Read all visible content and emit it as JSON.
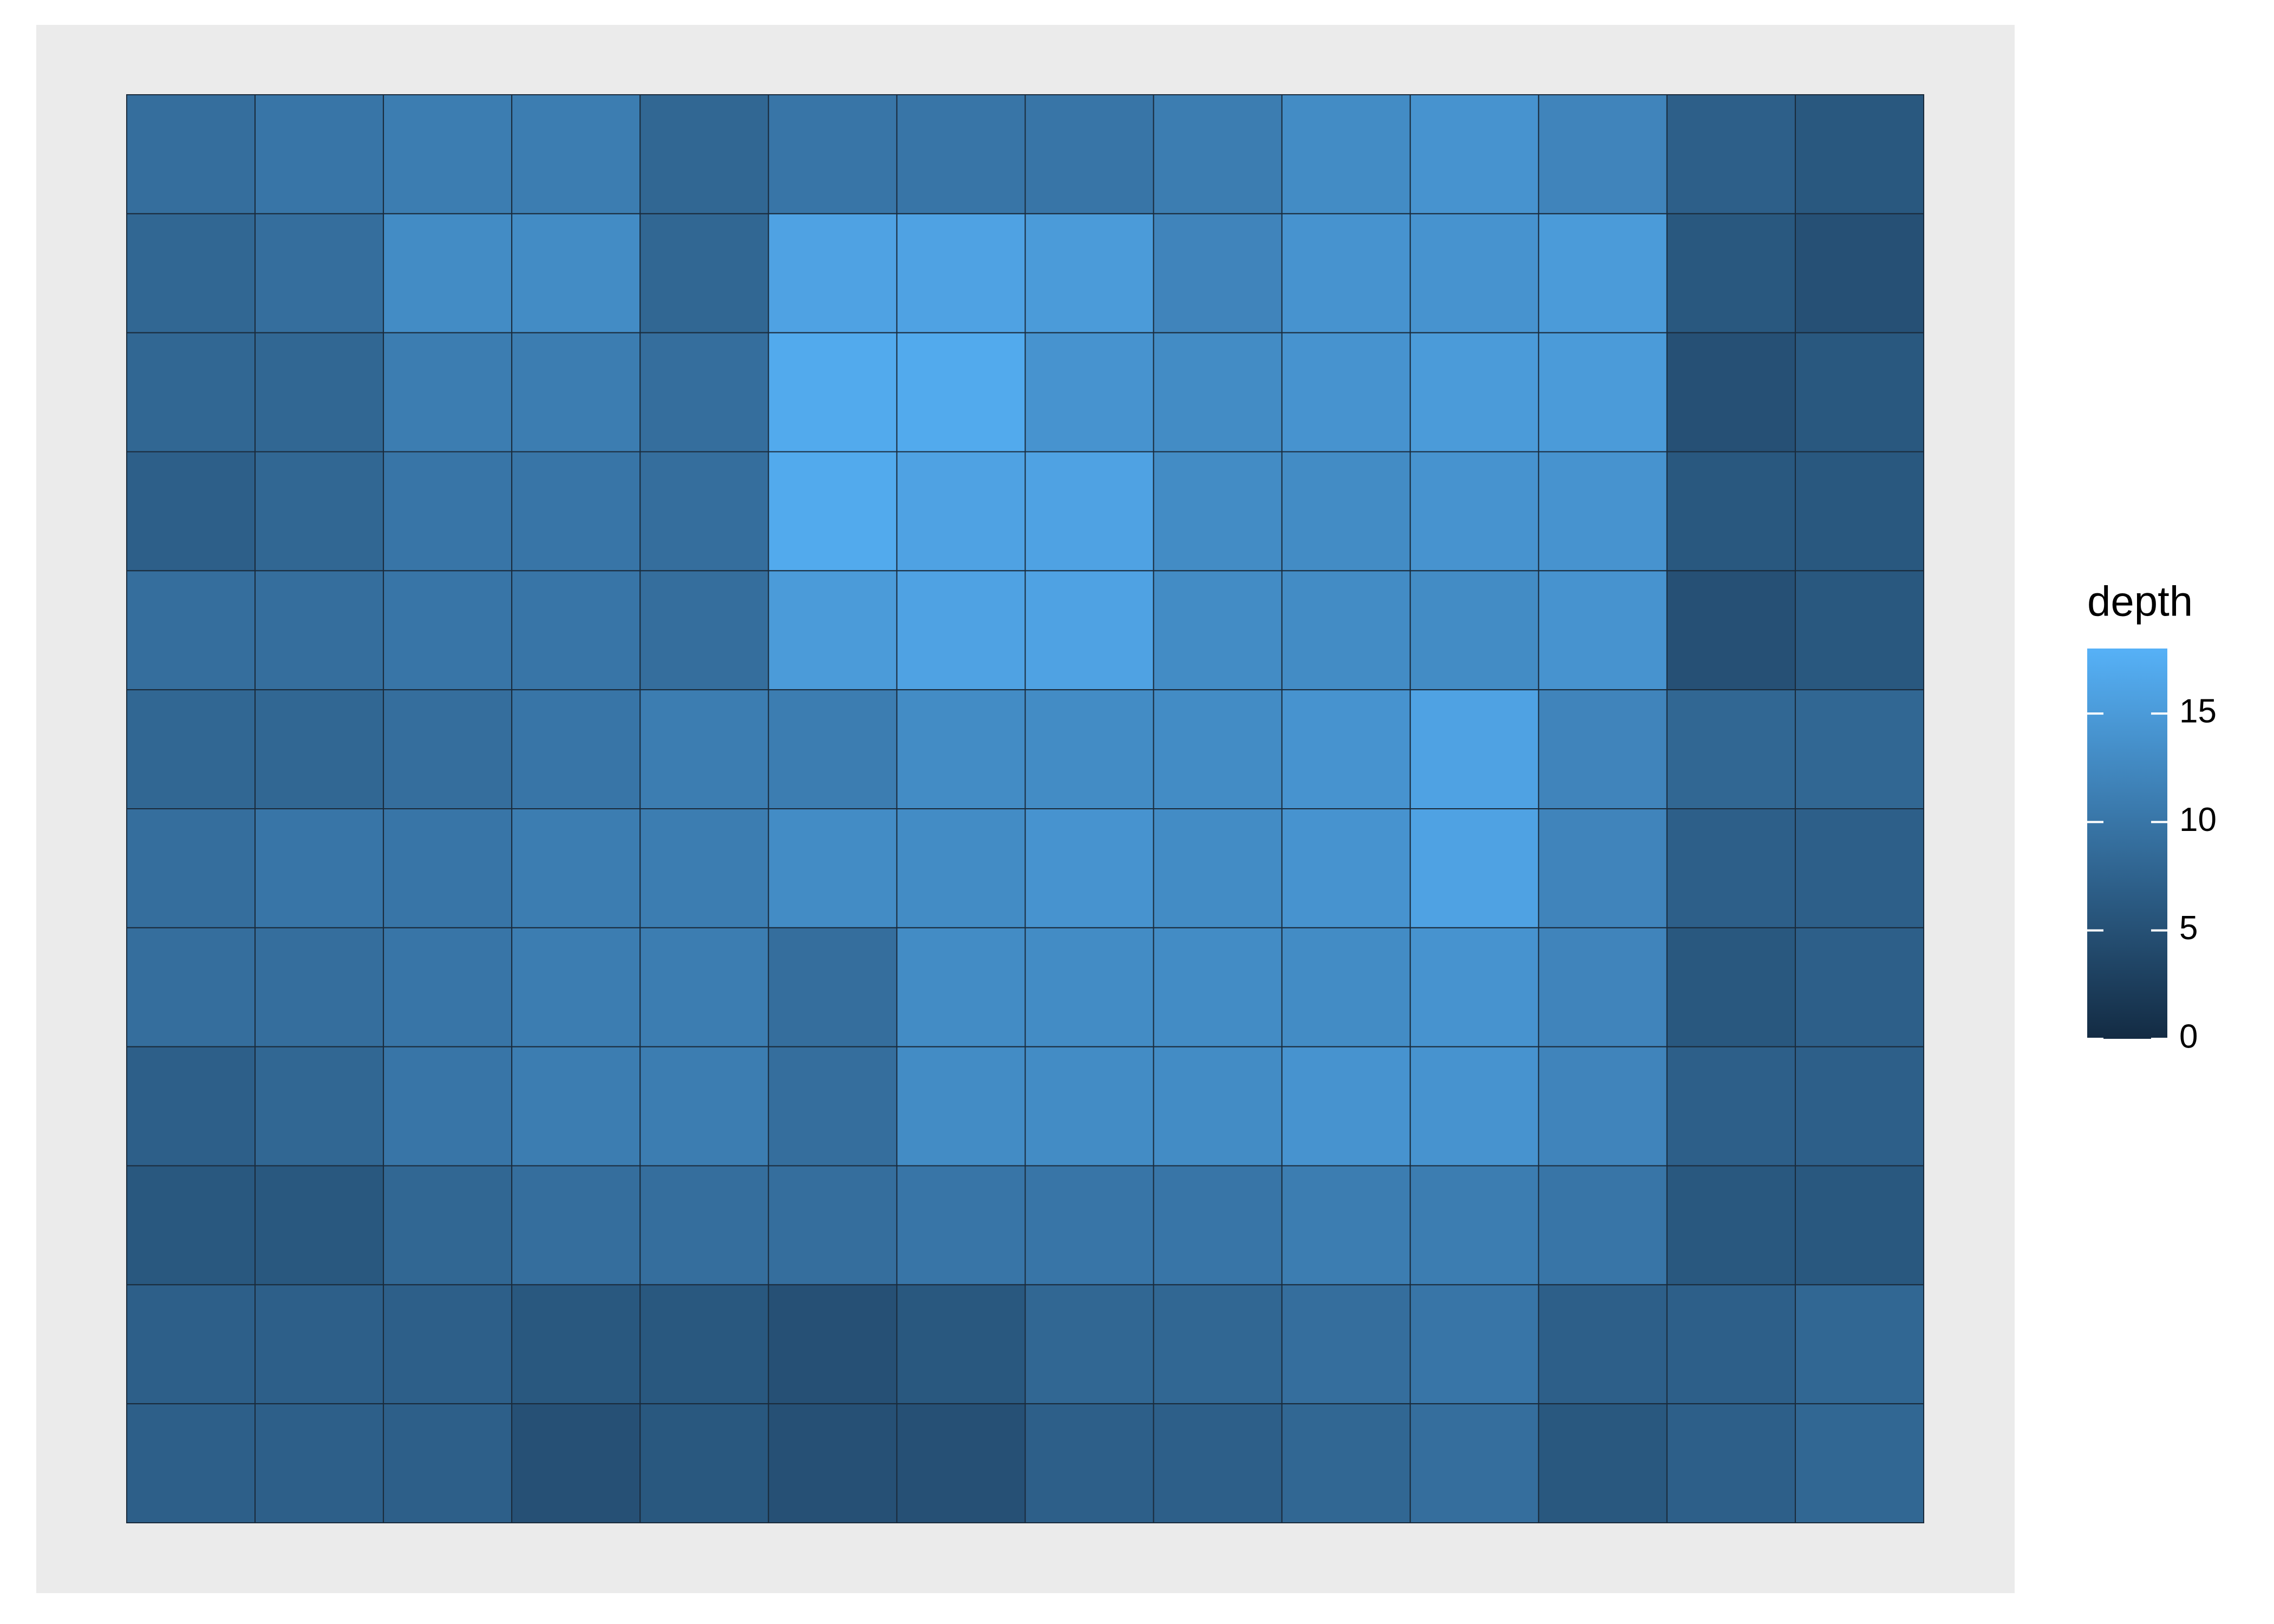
{
  "chart_data": {
    "type": "tile",
    "values": [
      [
        9,
        10,
        11,
        11,
        8,
        10,
        10,
        10,
        11,
        13,
        14,
        12,
        7,
        6
      ],
      [
        8,
        9,
        13,
        13,
        8,
        16,
        16,
        15,
        12,
        14,
        14,
        15,
        6,
        5
      ],
      [
        8,
        8,
        11,
        11,
        9,
        17,
        17,
        14,
        13,
        14,
        15,
        15,
        5,
        6
      ],
      [
        7,
        8,
        10,
        10,
        9,
        17,
        16,
        16,
        13,
        13,
        14,
        14,
        6,
        6
      ],
      [
        9,
        9,
        10,
        10,
        9,
        15,
        16,
        16,
        13,
        13,
        13,
        14,
        5,
        6
      ],
      [
        8,
        8,
        9,
        10,
        11,
        11,
        13,
        13,
        13,
        14,
        16,
        12,
        8,
        8
      ],
      [
        9,
        10,
        10,
        11,
        11,
        13,
        13,
        14,
        13,
        14,
        16,
        12,
        7,
        7
      ],
      [
        9,
        9,
        10,
        11,
        11,
        9,
        13,
        13,
        13,
        13,
        14,
        12,
        6,
        7
      ],
      [
        7,
        8,
        10,
        11,
        11,
        9,
        13,
        13,
        13,
        14,
        14,
        12,
        7,
        7
      ],
      [
        6,
        6,
        8,
        9,
        9,
        9,
        10,
        10,
        10,
        11,
        11,
        10,
        6,
        6
      ],
      [
        7,
        7,
        7,
        6,
        6,
        5,
        6,
        8,
        8,
        9,
        10,
        7,
        7,
        8
      ],
      [
        7,
        7,
        7,
        5,
        6,
        5,
        5,
        7,
        7,
        8,
        9,
        6,
        7,
        8
      ]
    ],
    "legend": {
      "title": "depth",
      "limits": [
        0,
        18
      ],
      "ticks": [
        0,
        5,
        10,
        15
      ],
      "low": "#132B43",
      "high": "#56B1F7"
    }
  }
}
